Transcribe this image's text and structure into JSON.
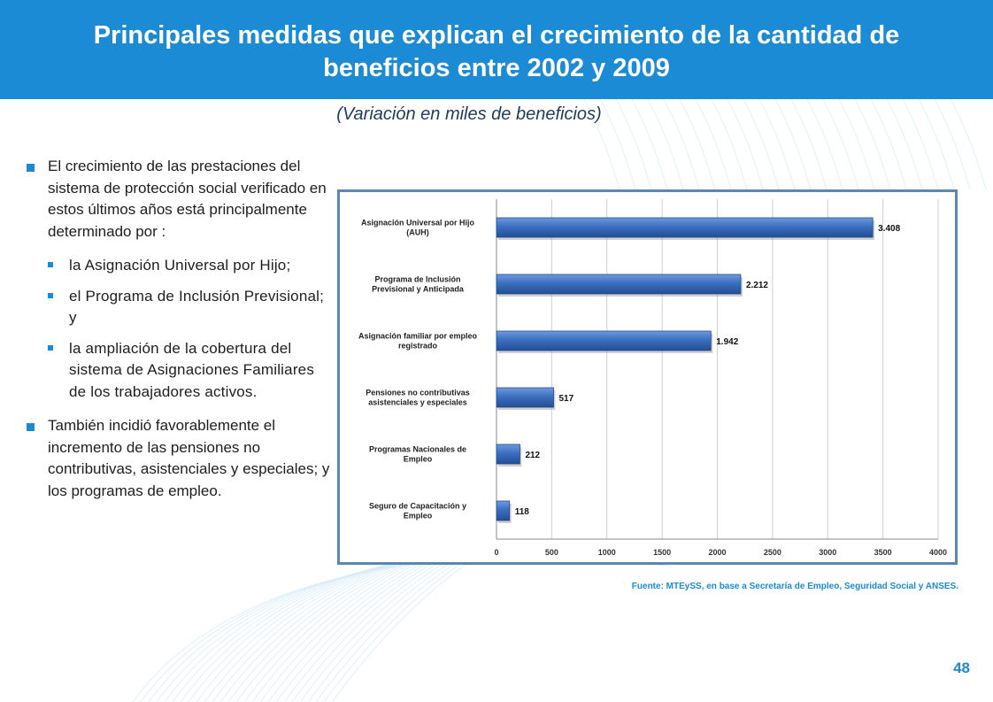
{
  "slide": {
    "title": "Principales medidas que explican el crecimiento de la cantidad de beneficios entre 2002 y 2009",
    "subtitle": "(Variación en miles de beneficios)",
    "bullet1": "El crecimiento de las prestaciones del sistema de protección social verificado en estos últimos años está principalmente determinado por :",
    "sub_bullets": [
      "la Asignación Universal por Hijo;",
      "el Programa de Inclusión Previsional; y",
      "la ampliación de la cobertura del sistema de Asignaciones Familiares de los trabajadores activos."
    ],
    "bullet2": "También incidió favorablemente el incremento de las pensiones no contributivas, asistenciales y especiales; y los programas de empleo.",
    "source": "Fuente: MTEySS, en base a Secretaría de Empleo, Seguridad Social y ANSES.",
    "page_number": "48",
    "accent_color": "#1b8bd6",
    "bar_color": "#3b6fbf"
  },
  "chart_data": {
    "type": "bar",
    "orientation": "horizontal",
    "categories": [
      [
        "Asignación Universal por Hijo",
        "(AUH)"
      ],
      [
        "Programa de Inclusión",
        "Previsional y Anticipada"
      ],
      [
        "Asignación familiar por empleo",
        "registrado"
      ],
      [
        "Pensiones no contributivas",
        "asistenciales y especiales"
      ],
      [
        "Programas Nacionales de",
        "Empleo"
      ],
      [
        "Seguro de Capacitación y",
        "Empleo"
      ]
    ],
    "values": [
      3408,
      2212,
      1942,
      517,
      212,
      118
    ],
    "value_labels": [
      "3.408",
      "2.212",
      "1.942",
      "517",
      "212",
      "118"
    ],
    "xlim": [
      0,
      4000
    ],
    "xticks": [
      0,
      500,
      1000,
      1500,
      2000,
      2500,
      3000,
      3500,
      4000
    ],
    "grid": true,
    "legend": "none"
  }
}
